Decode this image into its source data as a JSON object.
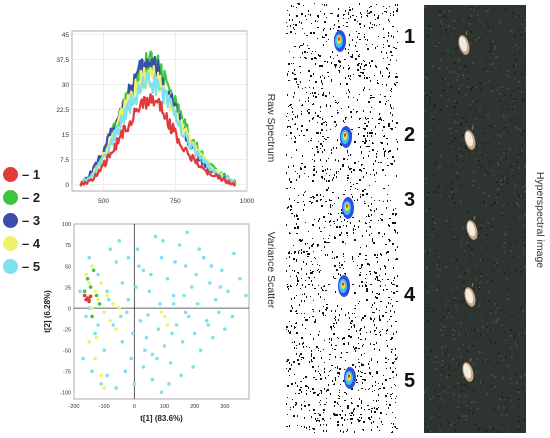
{
  "legend": {
    "items": [
      {
        "label": "– 1",
        "color": "#e03a3a"
      },
      {
        "label": "– 2",
        "color": "#3ec43e"
      },
      {
        "label": "– 3",
        "color": "#3a4fa8"
      },
      {
        "label": "– 4",
        "color": "#f2f26a"
      },
      {
        "label": "– 5",
        "color": "#7fe0ee"
      }
    ]
  },
  "labels": {
    "raw_spectrum": "Raw Spectrum",
    "variance_scatter": "Variance Scatter",
    "hyperspectral_image": "Hyperspectral image"
  },
  "sample_numbers": [
    "1",
    "2",
    "3",
    "4",
    "5"
  ],
  "chart_data": [
    {
      "type": "line",
      "title": "",
      "xlabel": "",
      "ylabel": "",
      "xlim": [
        390,
        1000
      ],
      "ylim": [
        -2,
        46
      ],
      "xticks": [
        500,
        750,
        1000
      ],
      "yticks": [
        0,
        7.5,
        15,
        22.5,
        30,
        37.5,
        45
      ],
      "ytick_labels": [
        "0",
        "7.5",
        "15",
        "22.5",
        "30",
        "37.5",
        "45"
      ],
      "grid": true,
      "x": [
        420,
        450,
        480,
        510,
        540,
        570,
        600,
        630,
        660,
        690,
        720,
        750,
        780,
        810,
        840,
        870,
        900,
        930,
        960
      ],
      "series": [
        {
          "color": "#3ec43e",
          "values": [
            0.5,
            2,
            6,
            11,
            17,
            23,
            29,
            34,
            37,
            35,
            30,
            24,
            18,
            13,
            9,
            6,
            3.5,
            2,
            0.5
          ]
        },
        {
          "color": "#3a4fa8",
          "values": [
            0.5,
            2.5,
            7,
            12,
            18,
            24,
            30,
            34,
            36,
            34,
            28,
            22,
            16,
            11,
            7,
            4.5,
            2.5,
            1.5,
            0.5
          ]
        },
        {
          "color": "#f2f26a",
          "values": [
            0.3,
            1.5,
            5,
            10,
            16,
            22,
            27,
            31,
            33,
            31,
            26,
            21,
            16,
            12,
            8.5,
            5.5,
            3,
            1.5,
            0.3
          ]
        },
        {
          "color": "#7fe0ee",
          "values": [
            0.2,
            1.5,
            5,
            9,
            15,
            20,
            25,
            29,
            31,
            29,
            25,
            20,
            15,
            11,
            8,
            5,
            3,
            1.5,
            0.2
          ]
        },
        {
          "color": "#e03a3a",
          "values": [
            0,
            1,
            3,
            7,
            11,
            16,
            20,
            23.5,
            26,
            24,
            20,
            15,
            11,
            8,
            5,
            3,
            2,
            1,
            0
          ]
        }
      ]
    },
    {
      "type": "scatter",
      "title": "",
      "xlabel": "t[1] (83.6%)",
      "ylabel": "t[2] (6.28%)",
      "xlim": [
        -200,
        380
      ],
      "ylim": [
        -108,
        100
      ],
      "xticks": [
        -200,
        -100,
        0,
        100,
        200,
        300
      ],
      "yticks": [
        -100,
        -75,
        -50,
        -25,
        0,
        25,
        50,
        75,
        100
      ],
      "grid": false,
      "series": [
        {
          "color": "#7fe0ee",
          "points": [
            [
              -150,
              60
            ],
            [
              -120,
              40
            ],
            [
              -90,
              20
            ],
            [
              -60,
              55
            ],
            [
              -40,
              30
            ],
            [
              -20,
              10
            ],
            [
              10,
              70
            ],
            [
              30,
              45
            ],
            [
              50,
              20
            ],
            [
              70,
              85
            ],
            [
              90,
              60
            ],
            [
              110,
              35
            ],
            [
              130,
              15
            ],
            [
              150,
              75
            ],
            [
              170,
              50
            ],
            [
              190,
              25
            ],
            [
              210,
              5
            ],
            [
              230,
              60
            ],
            [
              250,
              30
            ],
            [
              270,
              10
            ],
            [
              290,
              45
            ],
            [
              310,
              20
            ],
            [
              330,
              65
            ],
            [
              350,
              35
            ],
            [
              370,
              15
            ],
            [
              -160,
              -10
            ],
            [
              -130,
              -30
            ],
            [
              -100,
              -50
            ],
            [
              -70,
              -20
            ],
            [
              -40,
              -40
            ],
            [
              -10,
              -60
            ],
            [
              20,
              -15
            ],
            [
              40,
              -35
            ],
            [
              60,
              -55
            ],
            [
              80,
              -25
            ],
            [
              100,
              -45
            ],
            [
              120,
              -65
            ],
            [
              140,
              -20
            ],
            [
              160,
              -40
            ],
            [
              180,
              -10
            ],
            [
              200,
              -30
            ],
            [
              220,
              -50
            ],
            [
              240,
              -15
            ],
            [
              260,
              -35
            ],
            [
              280,
              -5
            ],
            [
              300,
              -25
            ],
            [
              -90,
              -80
            ],
            [
              -60,
              -95
            ],
            [
              -30,
              -75
            ],
            [
              0,
              -90
            ],
            [
              30,
              -70
            ],
            [
              60,
              -85
            ],
            [
              90,
              -100
            ],
            [
              -170,
              -60
            ],
            [
              -140,
              -75
            ],
            [
              -110,
              -90
            ],
            [
              130,
              5
            ],
            [
              170,
              -5
            ],
            [
              -25,
              -5
            ],
            [
              5,
              25
            ],
            [
              45,
              -8
            ],
            [
              85,
              5
            ],
            [
              125,
              -30
            ],
            [
              165,
              15
            ],
            [
              205,
              40
            ],
            [
              245,
              -20
            ],
            [
              285,
              25
            ],
            [
              325,
              -10
            ],
            [
              -180,
              20
            ],
            [
              -150,
              0
            ],
            [
              -120,
              -20
            ],
            [
              -80,
              70
            ],
            [
              -50,
              80
            ],
            [
              -20,
              60
            ],
            [
              15,
              50
            ],
            [
              55,
              40
            ],
            [
              95,
              80
            ],
            [
              135,
              55
            ],
            [
              175,
              90
            ],
            [
              215,
              70
            ],
            [
              255,
              50
            ],
            [
              195,
              -70
            ],
            [
              155,
              -80
            ],
            [
              115,
              -90
            ],
            [
              75,
              -60
            ],
            [
              35,
              -50
            ],
            [
              -5,
              -30
            ],
            [
              -45,
              -10
            ],
            [
              -85,
              10
            ]
          ]
        },
        {
          "color": "#f2f26a",
          "points": [
            [
              -160,
              40
            ],
            [
              -150,
              30
            ],
            [
              -140,
              50
            ],
            [
              -130,
              20
            ],
            [
              -120,
              10
            ],
            [
              -110,
              30
            ],
            [
              -100,
              -5
            ],
            [
              -90,
              15
            ],
            [
              -80,
              -15
            ],
            [
              -70,
              5
            ],
            [
              -60,
              -25
            ],
            [
              -50,
              0
            ],
            [
              -150,
              -40
            ],
            [
              -130,
              -60
            ],
            [
              -110,
              -80
            ],
            [
              -100,
              -95
            ],
            [
              90,
              -5
            ],
            [
              100,
              -10
            ],
            [
              110,
              -20
            ],
            [
              -140,
              0
            ],
            [
              -145,
              15
            ],
            [
              -125,
              -35
            ]
          ]
        },
        {
          "color": "#3ec43e",
          "points": [
            [
              -155,
              35
            ],
            [
              -145,
              25
            ],
            [
              -135,
              45
            ],
            [
              -125,
              15
            ],
            [
              -115,
              5
            ],
            [
              -150,
              10
            ],
            [
              -140,
              -10
            ],
            [
              -165,
              20
            ]
          ]
        },
        {
          "color": "#e03a3a",
          "points": [
            [
              -165,
              15
            ],
            [
              -160,
              10
            ],
            [
              -155,
              12
            ],
            [
              -150,
              8
            ],
            [
              -145,
              14
            ]
          ]
        }
      ]
    }
  ]
}
